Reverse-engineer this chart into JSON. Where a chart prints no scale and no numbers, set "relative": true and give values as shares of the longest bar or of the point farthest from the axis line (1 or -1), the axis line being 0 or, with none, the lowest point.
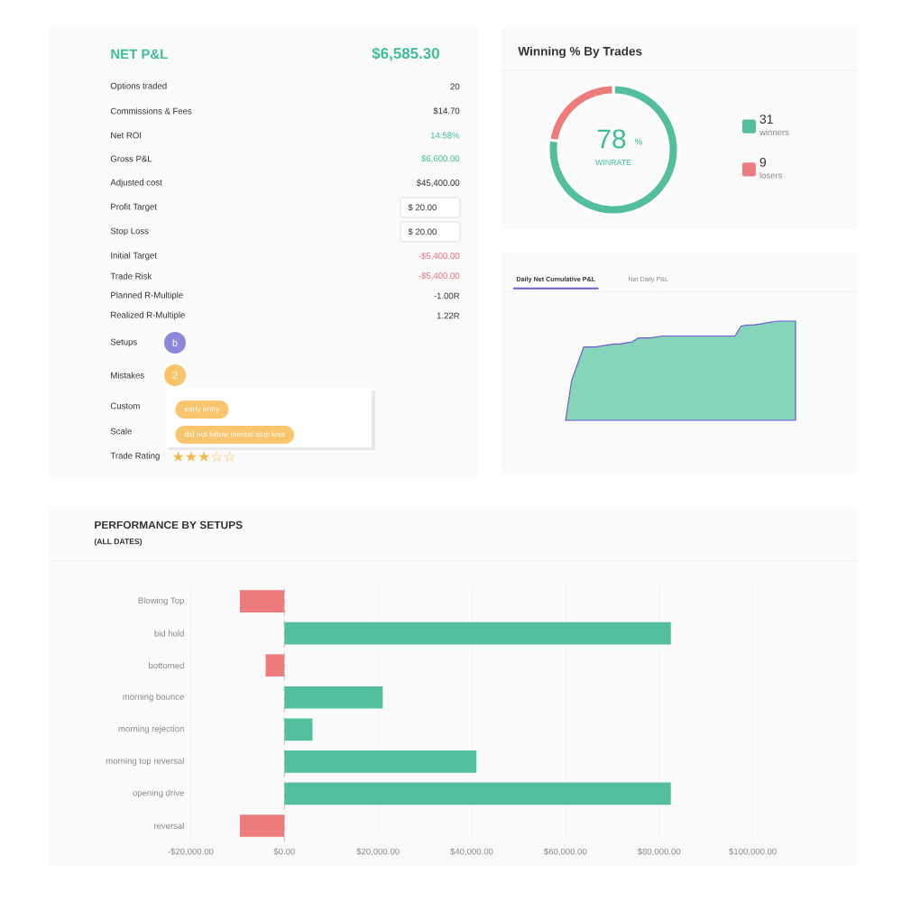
{
  "chart_data": [
    {
      "type": "other",
      "title": "NET P&L",
      "subtitle": "$6,585.30",
      "categories": [
        "Options traded",
        "Commissions & Fees",
        "Net ROI",
        "Gross P&L",
        "Adjusted cost",
        "Profit Target",
        "Stop Loss",
        "Initial Target",
        "Trade Risk",
        "Planned R-Multiple",
        "Realized R-Multiple",
        "Setups",
        "Mistakes",
        "Custom",
        "Scale",
        "Trade Rating"
      ],
      "value_labels": [
        "20",
        "$14.70",
        "14.58%",
        "$6,600.00",
        "$45,400.00",
        "$ 20.00",
        "$ 20.00",
        "-$5,400.00",
        "-$5,400.00",
        "-1.00R",
        "1.22R",
        "b",
        "2",
        null,
        null,
        "★★★☆☆"
      ],
      "annotations": [
        "early entry",
        "did not follow mental stop loss"
      ]
    },
    {
      "type": "donut",
      "title": "Winning % By Trades",
      "categories": [
        "winners",
        "losers"
      ],
      "values": [
        31,
        9
      ],
      "colors": [
        "#52be9e",
        "#ee7c7d"
      ],
      "data_labels": true,
      "legend": "right",
      "annotations": [
        "78",
        "%",
        "WINRATE"
      ]
    },
    {
      "type": "area",
      "title": "Daily Net Cumulative P&L",
      "annotations": [
        "Net Daily P&L"
      ],
      "relative": true,
      "color": "#86d4ba",
      "categories": [
        null,
        null,
        null,
        null,
        null,
        null,
        null,
        null,
        null,
        null,
        null,
        null,
        null,
        null,
        null,
        null,
        null,
        null,
        null,
        null,
        null,
        null,
        null,
        null,
        null,
        null,
        null,
        null,
        null,
        null,
        null,
        null,
        null,
        null,
        null,
        null,
        null,
        null,
        null
      ],
      "values": [
        0,
        0.4,
        0.57,
        0.74,
        0.74,
        0.74,
        0.75,
        0.76,
        0.77,
        0.77,
        0.78,
        0.79,
        0.83,
        0.83,
        0.83,
        0.84,
        0.85,
        0.85,
        0.85,
        0.85,
        0.85,
        0.85,
        0.85,
        0.85,
        0.85,
        0.85,
        0.85,
        0.85,
        0.85,
        0.95,
        0.96,
        0.96,
        0.97,
        0.98,
        0.99,
        1,
        1,
        1,
        1
      ]
    },
    {
      "type": "bar",
      "orientation": "horizontal",
      "title": "PERFORMANCE BY SETUPS",
      "subtitle": "(ALL DATES)",
      "categories": [
        "Blowing Top",
        "bid hold",
        "bottomed",
        "morning bounce",
        "morning rejection",
        "morning top reversal",
        "opening drive",
        "reversal"
      ],
      "values": [
        -9500,
        82500,
        -4000,
        21000,
        6000,
        41000,
        82500,
        -9500
      ],
      "colors": [
        "#ee7c7d",
        "#52be9e",
        "#ee7c7d",
        "#52be9e",
        "#52be9e",
        "#52be9e",
        "#52be9e",
        "#ee7c7d"
      ],
      "xlim": [
        -20000,
        100000
      ],
      "xticks": [
        {
          "value": -20000,
          "label": "-$20,000.00"
        },
        {
          "value": 0,
          "label": "$0.00"
        },
        {
          "value": 20000,
          "label": "$20,000.00"
        },
        {
          "value": 40000,
          "label": "$40,000.00"
        },
        {
          "value": 60000,
          "label": "$60,000.00"
        },
        {
          "value": 80000,
          "label": "$80,000.00"
        },
        {
          "value": 100000,
          "label": "$100,000.00"
        }
      ],
      "ref_lines": [
        {
          "axis": "x",
          "value": 0,
          "color": "#bbbbbb",
          "line_style": "dashed"
        }
      ],
      "grid": "x"
    }
  ]
}
